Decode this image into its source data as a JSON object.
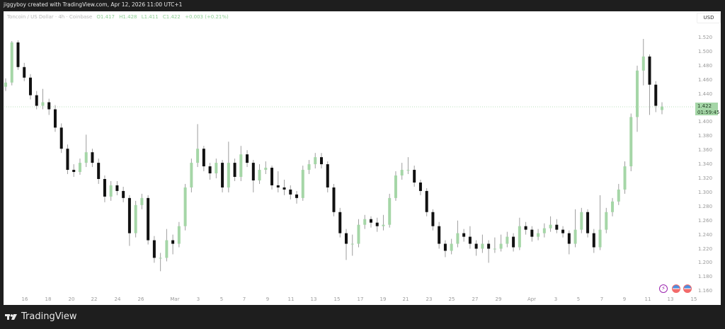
{
  "header": {
    "attribution": "jiggyboy created with TradingView.com, Apr 12, 2026 11:00 UTC+1"
  },
  "legend": {
    "symbol": "Toncoin / US Dollar · 4h · Coinbase",
    "open": "O1.417",
    "high": "H1.428",
    "low": "L1.411",
    "close": "C1.422",
    "change": "+0.003 (+0.21%)"
  },
  "price_axis": {
    "currency": "USD",
    "ticks": [
      "1.520",
      "1.500",
      "1.480",
      "1.460",
      "1.440",
      "1.400",
      "1.380",
      "1.360",
      "1.340",
      "1.320",
      "1.300",
      "1.280",
      "1.260",
      "1.240",
      "1.220",
      "1.200",
      "1.180",
      "1.160"
    ],
    "last_price": "1.422",
    "countdown": "01:59:45"
  },
  "time_axis": {
    "ticks": [
      "16",
      "18",
      "20",
      "22",
      "24",
      "26",
      "Mar",
      "3",
      "5",
      "7",
      "9",
      "11",
      "13",
      "15",
      "17",
      "19",
      "21",
      "23",
      "25",
      "27",
      "29",
      "Apr",
      "3",
      "5",
      "7",
      "9",
      "11",
      "13",
      "15"
    ]
  },
  "colors": {
    "up": "#a5d6a7",
    "down": "#111111",
    "wick": "#9e9e9e",
    "last_price": "#a5d6a7",
    "event_purple": "#9c27b0"
  },
  "event_icons": [
    "lightning-icon",
    "us-flag-icon",
    "us-flag-icon"
  ],
  "footer": {
    "brand": "TradingView"
  },
  "chart_data": {
    "type": "candlestick",
    "title": "Toncoin / US Dollar · 4h · Coinbase",
    "ylim": [
      1.16,
      1.52
    ],
    "grid": false,
    "candles": [
      [
        1.45,
        1.462,
        1.444,
        1.456
      ],
      [
        1.456,
        1.515,
        1.452,
        1.513
      ],
      [
        1.513,
        1.516,
        1.474,
        1.478
      ],
      [
        1.478,
        1.484,
        1.458,
        1.463
      ],
      [
        1.463,
        1.468,
        1.432,
        1.438
      ],
      [
        1.438,
        1.444,
        1.418,
        1.423
      ],
      [
        1.423,
        1.447,
        1.418,
        1.428
      ],
      [
        1.428,
        1.433,
        1.41,
        1.418
      ],
      [
        1.418,
        1.424,
        1.386,
        1.392
      ],
      [
        1.392,
        1.398,
        1.356,
        1.362
      ],
      [
        1.362,
        1.368,
        1.326,
        1.332
      ],
      [
        1.332,
        1.34,
        1.322,
        1.329
      ],
      [
        1.329,
        1.348,
        1.325,
        1.342
      ],
      [
        1.342,
        1.382,
        1.336,
        1.357
      ],
      [
        1.357,
        1.362,
        1.336,
        1.342
      ],
      [
        1.342,
        1.348,
        1.312,
        1.319
      ],
      [
        1.319,
        1.324,
        1.286,
        1.294
      ],
      [
        1.294,
        1.316,
        1.288,
        1.31
      ],
      [
        1.31,
        1.316,
        1.296,
        1.302
      ],
      [
        1.302,
        1.308,
        1.286,
        1.292
      ],
      [
        1.292,
        1.296,
        1.224,
        1.242
      ],
      [
        1.242,
        1.288,
        1.236,
        1.282
      ],
      [
        1.282,
        1.298,
        1.276,
        1.292
      ],
      [
        1.292,
        1.296,
        1.226,
        1.232
      ],
      [
        1.232,
        1.238,
        1.2,
        1.207
      ],
      [
        1.207,
        1.214,
        1.188,
        1.207
      ],
      [
        1.207,
        1.248,
        1.202,
        1.232
      ],
      [
        1.232,
        1.24,
        1.212,
        1.227
      ],
      [
        1.227,
        1.258,
        1.222,
        1.252
      ],
      [
        1.252,
        1.312,
        1.246,
        1.307
      ],
      [
        1.307,
        1.348,
        1.3,
        1.342
      ],
      [
        1.342,
        1.397,
        1.336,
        1.362
      ],
      [
        1.362,
        1.366,
        1.33,
        1.337
      ],
      [
        1.337,
        1.342,
        1.318,
        1.327
      ],
      [
        1.327,
        1.348,
        1.32,
        1.342
      ],
      [
        1.342,
        1.346,
        1.3,
        1.307
      ],
      [
        1.307,
        1.372,
        1.3,
        1.342
      ],
      [
        1.342,
        1.348,
        1.316,
        1.322
      ],
      [
        1.322,
        1.366,
        1.316,
        1.354
      ],
      [
        1.354,
        1.36,
        1.336,
        1.342
      ],
      [
        1.342,
        1.346,
        1.3,
        1.317
      ],
      [
        1.317,
        1.34,
        1.312,
        1.332
      ],
      [
        1.332,
        1.344,
        1.326,
        1.335
      ],
      [
        1.335,
        1.338,
        1.304,
        1.31
      ],
      [
        1.31,
        1.33,
        1.3,
        1.307
      ],
      [
        1.307,
        1.318,
        1.296,
        1.304
      ],
      [
        1.304,
        1.31,
        1.29,
        1.297
      ],
      [
        1.297,
        1.302,
        1.284,
        1.292
      ],
      [
        1.292,
        1.338,
        1.288,
        1.332
      ],
      [
        1.332,
        1.346,
        1.326,
        1.34
      ],
      [
        1.34,
        1.356,
        1.334,
        1.35
      ],
      [
        1.35,
        1.356,
        1.334,
        1.34
      ],
      [
        1.34,
        1.344,
        1.3,
        1.307
      ],
      [
        1.307,
        1.312,
        1.266,
        1.272
      ],
      [
        1.272,
        1.278,
        1.236,
        1.242
      ],
      [
        1.242,
        1.248,
        1.204,
        1.227
      ],
      [
        1.227,
        1.24,
        1.21,
        1.227
      ],
      [
        1.227,
        1.262,
        1.222,
        1.254
      ],
      [
        1.254,
        1.268,
        1.248,
        1.262
      ],
      [
        1.262,
        1.266,
        1.25,
        1.257
      ],
      [
        1.257,
        1.264,
        1.244,
        1.252
      ],
      [
        1.252,
        1.268,
        1.246,
        1.254
      ],
      [
        1.254,
        1.298,
        1.25,
        1.292
      ],
      [
        1.292,
        1.33,
        1.288,
        1.324
      ],
      [
        1.324,
        1.342,
        1.318,
        1.332
      ],
      [
        1.332,
        1.35,
        1.326,
        1.332
      ],
      [
        1.332,
        1.338,
        1.308,
        1.314
      ],
      [
        1.314,
        1.318,
        1.296,
        1.302
      ],
      [
        1.302,
        1.306,
        1.266,
        1.272
      ],
      [
        1.272,
        1.276,
        1.246,
        1.252
      ],
      [
        1.252,
        1.258,
        1.22,
        1.227
      ],
      [
        1.227,
        1.232,
        1.208,
        1.217
      ],
      [
        1.217,
        1.234,
        1.212,
        1.227
      ],
      [
        1.227,
        1.26,
        1.222,
        1.242
      ],
      [
        1.242,
        1.248,
        1.23,
        1.237
      ],
      [
        1.237,
        1.252,
        1.22,
        1.227
      ],
      [
        1.227,
        1.232,
        1.21,
        1.22
      ],
      [
        1.22,
        1.24,
        1.214,
        1.227
      ],
      [
        1.227,
        1.232,
        1.2,
        1.22
      ],
      [
        1.22,
        1.236,
        1.214,
        1.22
      ],
      [
        1.22,
        1.24,
        1.216,
        1.227
      ],
      [
        1.227,
        1.244,
        1.222,
        1.237
      ],
      [
        1.237,
        1.242,
        1.216,
        1.222
      ],
      [
        1.222,
        1.264,
        1.218,
        1.252
      ],
      [
        1.252,
        1.258,
        1.24,
        1.247
      ],
      [
        1.247,
        1.252,
        1.23,
        1.237
      ],
      [
        1.237,
        1.248,
        1.232,
        1.242
      ],
      [
        1.242,
        1.256,
        1.236,
        1.249
      ],
      [
        1.249,
        1.266,
        1.244,
        1.254
      ],
      [
        1.254,
        1.262,
        1.242,
        1.247
      ],
      [
        1.247,
        1.252,
        1.236,
        1.242
      ],
      [
        1.242,
        1.246,
        1.212,
        1.227
      ],
      [
        1.227,
        1.276,
        1.222,
        1.247
      ],
      [
        1.247,
        1.278,
        1.242,
        1.272
      ],
      [
        1.272,
        1.276,
        1.236,
        1.242
      ],
      [
        1.242,
        1.248,
        1.214,
        1.222
      ],
      [
        1.222,
        1.296,
        1.218,
        1.247
      ],
      [
        1.247,
        1.278,
        1.242,
        1.272
      ],
      [
        1.272,
        1.292,
        1.266,
        1.287
      ],
      [
        1.287,
        1.312,
        1.282,
        1.304
      ],
      [
        1.304,
        1.344,
        1.298,
        1.337
      ],
      [
        1.337,
        1.412,
        1.33,
        1.407
      ],
      [
        1.407,
        1.48,
        1.386,
        1.473
      ],
      [
        1.473,
        1.518,
        1.452,
        1.493
      ],
      [
        1.493,
        1.496,
        1.41,
        1.453
      ],
      [
        1.453,
        1.458,
        1.414,
        1.423
      ],
      [
        1.417,
        1.428,
        1.411,
        1.422
      ]
    ]
  }
}
